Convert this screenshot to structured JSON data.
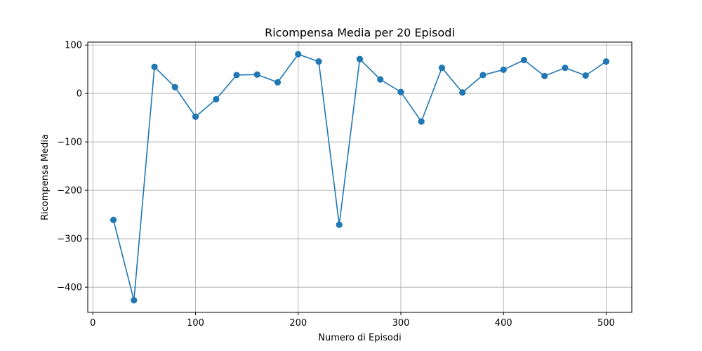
{
  "chart_data": {
    "type": "line",
    "title": "Ricompensa Media per 20 Episodi",
    "xlabel": "Numero di Episodi",
    "ylabel": "Ricompensa Media",
    "xlim": [
      -5,
      525
    ],
    "ylim": [
      -452,
      106
    ],
    "xticks": [
      0,
      100,
      200,
      300,
      400,
      500
    ],
    "yticks": [
      100,
      0,
      -100,
      -200,
      -300,
      -400
    ],
    "xtick_labels": [
      "0",
      "100",
      "200",
      "300",
      "400",
      "500"
    ],
    "ytick_labels": [
      "100",
      "0",
      "−100",
      "−200",
      "−300",
      "−400"
    ],
    "grid": true,
    "markers": true,
    "color": "#1f77b4",
    "series": [
      {
        "x": [
          20,
          40,
          60,
          80,
          100,
          120,
          140,
          160,
          180,
          200,
          220,
          240,
          260,
          280,
          300,
          320,
          340,
          360,
          380,
          400,
          420,
          440,
          460,
          480,
          500
        ],
        "y": [
          -261,
          -427,
          55,
          13,
          -48,
          -12,
          38,
          39,
          23,
          81,
          66,
          -271,
          71,
          29,
          3,
          -58,
          53,
          2,
          38,
          49,
          69,
          36,
          53,
          37,
          66
        ]
      }
    ]
  }
}
